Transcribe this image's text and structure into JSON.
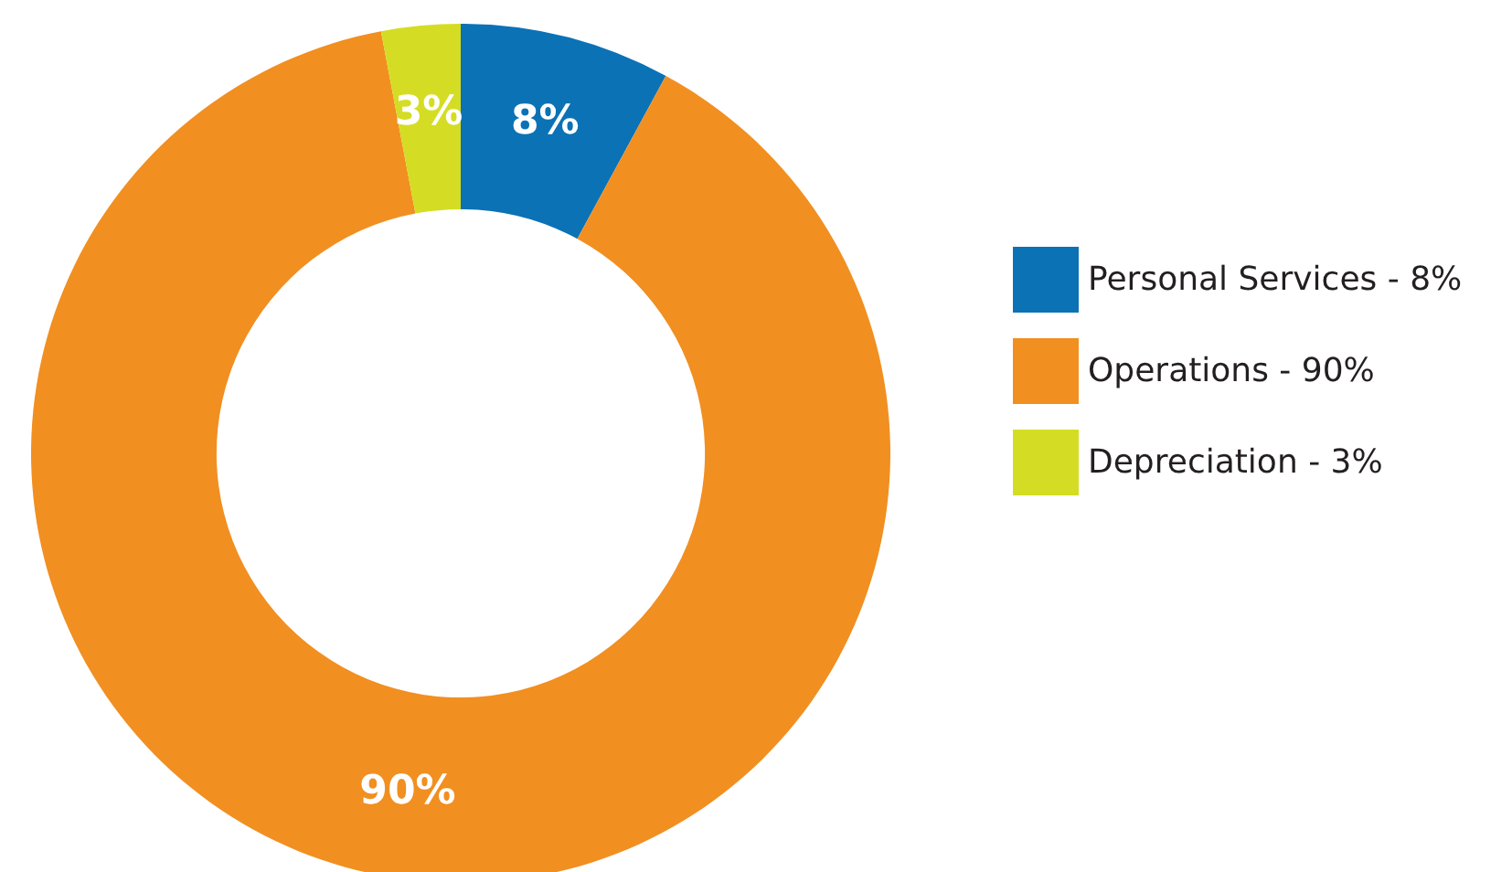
{
  "chart_data": {
    "type": "donut",
    "categories": [
      "Personal Services - 8%",
      "Operations - 90%",
      "Depreciation - 3%"
    ],
    "values": [
      8,
      90,
      3
    ],
    "colors": [
      "#0b72b5",
      "#f18f21",
      "#d4dd23"
    ],
    "value_labels": [
      "8%",
      "90%",
      "3%"
    ],
    "legend": "right"
  }
}
